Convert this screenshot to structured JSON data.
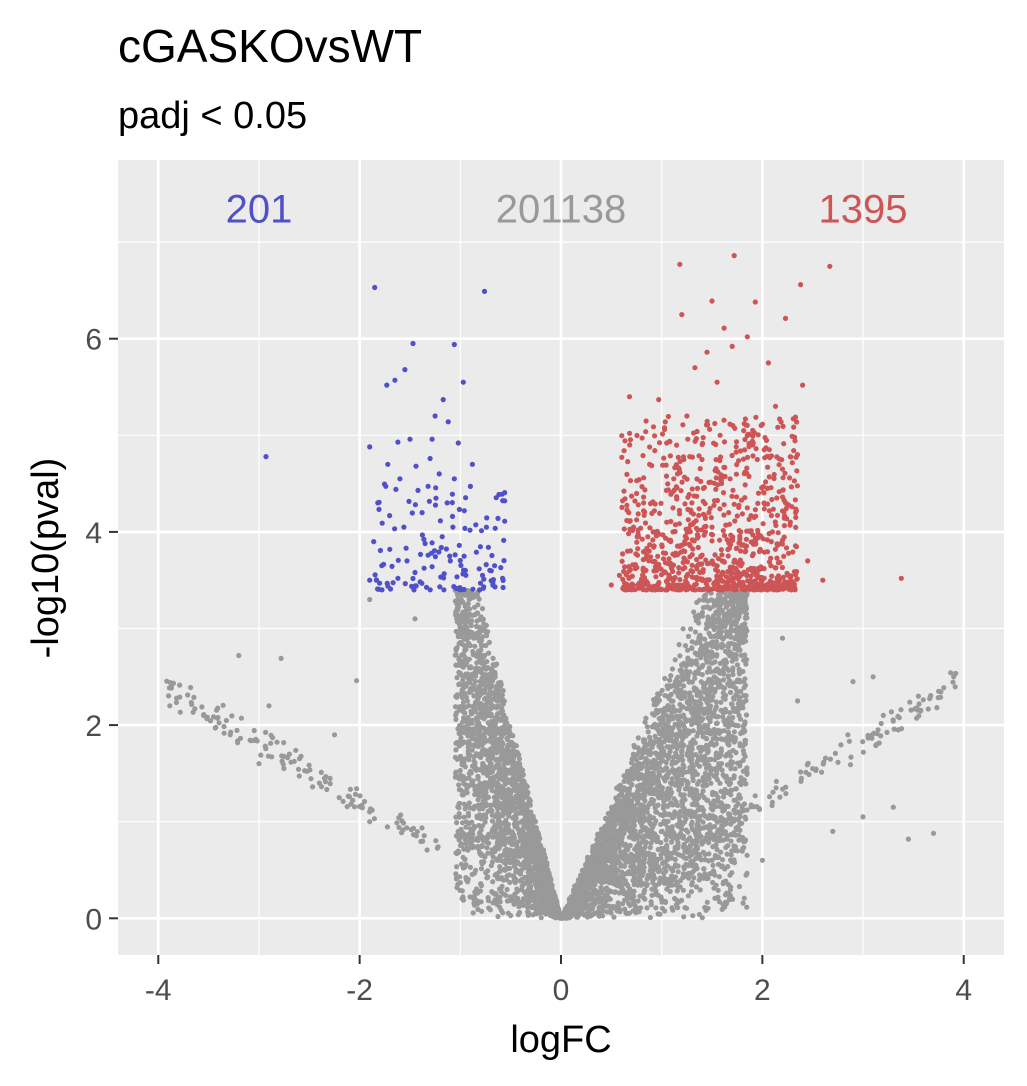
{
  "chart_data": {
    "type": "scatter",
    "title": "cGASKOvsWT",
    "subtitle": "padj < 0.05",
    "xlabel": "logFC",
    "ylabel": "-log10(pval)",
    "xlim": [
      -4.4,
      4.4
    ],
    "ylim": [
      -0.38,
      7.85
    ],
    "x_ticks": [
      -4,
      -2,
      0,
      2,
      4
    ],
    "x_tick_labels": [
      "-4",
      "-2",
      "0",
      "2",
      "4"
    ],
    "y_ticks": [
      0,
      2,
      4,
      6
    ],
    "y_tick_labels": [
      "0",
      "2",
      "4",
      "6"
    ],
    "grid": true,
    "background": "#ebebeb",
    "colors": {
      "down": "#5050c8",
      "ns": "#999999",
      "up": "#cd5555"
    },
    "significance_threshold": 3.4,
    "counts": [
      {
        "label": "201",
        "x": -3.0,
        "y": 7.35,
        "group": "down"
      },
      {
        "label": "201138",
        "x": 0.0,
        "y": 7.35,
        "group": "ns"
      },
      {
        "label": "1395",
        "x": 3.0,
        "y": 7.35,
        "group": "up"
      }
    ],
    "series": [
      {
        "group": "down",
        "points": [
          [
            -2.93,
            4.78
          ],
          [
            -1.85,
            6.53
          ],
          [
            -0.76,
            6.49
          ],
          [
            -1.47,
            5.95
          ],
          [
            -1.06,
            5.94
          ],
          [
            -0.97,
            5.55
          ],
          [
            -1.55,
            5.68
          ],
          [
            -1.65,
            5.57
          ],
          [
            -1.73,
            5.52
          ],
          [
            -1.17,
            5.37
          ],
          [
            -1.25,
            5.2
          ],
          [
            -1.12,
            5.14
          ],
          [
            -1.9,
            4.88
          ],
          [
            -1.62,
            4.93
          ],
          [
            -1.5,
            4.96
          ],
          [
            -1.28,
            4.96
          ],
          [
            -1.02,
            4.92
          ],
          [
            -1.72,
            4.7
          ],
          [
            -1.44,
            4.68
          ],
          [
            -1.3,
            4.76
          ],
          [
            -0.88,
            4.7
          ],
          [
            -1.6,
            4.55
          ],
          [
            -1.42,
            4.43
          ],
          [
            -1.06,
            4.55
          ],
          [
            -1.21,
            4.6
          ],
          [
            -1.82,
            4.3
          ],
          [
            -1.56,
            4.05
          ],
          [
            -1.38,
            4.2
          ],
          [
            -1.13,
            4.3
          ],
          [
            -0.96,
            4.22
          ],
          [
            -1.86,
            3.9
          ],
          [
            -1.7,
            3.82
          ],
          [
            -1.53,
            3.7
          ],
          [
            -1.35,
            3.88
          ],
          [
            -1.18,
            3.95
          ],
          [
            -1.01,
            3.86
          ],
          [
            -0.84,
            3.79
          ],
          [
            -0.66,
            3.65
          ],
          [
            -0.58,
            3.52
          ],
          [
            -1.9,
            3.5
          ],
          [
            -1.78,
            3.65
          ],
          [
            -1.62,
            3.52
          ],
          [
            -1.45,
            3.58
          ],
          [
            -1.28,
            3.64
          ],
          [
            -1.1,
            3.7
          ],
          [
            -0.95,
            3.6
          ],
          [
            -0.78,
            3.55
          ]
        ]
      },
      {
        "group": "up",
        "points": [
          [
            1.18,
            6.77
          ],
          [
            1.72,
            6.86
          ],
          [
            2.67,
            6.75
          ],
          [
            2.38,
            6.56
          ],
          [
            1.5,
            6.39
          ],
          [
            1.93,
            6.38
          ],
          [
            1.2,
            6.25
          ],
          [
            2.23,
            6.21
          ],
          [
            1.62,
            6.11
          ],
          [
            1.85,
            6.02
          ],
          [
            1.45,
            5.86
          ],
          [
            1.7,
            5.92
          ],
          [
            1.33,
            5.7
          ],
          [
            2.06,
            5.75
          ],
          [
            1.55,
            5.55
          ],
          [
            2.4,
            5.52
          ],
          [
            0.68,
            5.4
          ],
          [
            0.97,
            5.37
          ],
          [
            2.13,
            5.3
          ],
          [
            1.25,
            5.2
          ],
          [
            1.82,
            5.12
          ],
          [
            1.05,
            4.92
          ],
          [
            1.58,
            5.0
          ],
          [
            2.32,
            4.98
          ],
          [
            0.88,
            4.7
          ],
          [
            1.4,
            4.75
          ],
          [
            1.95,
            4.75
          ],
          [
            2.2,
            4.65
          ],
          [
            1.12,
            4.55
          ],
          [
            1.68,
            4.55
          ],
          [
            2.05,
            4.45
          ],
          [
            0.82,
            4.3
          ],
          [
            1.3,
            4.3
          ],
          [
            1.85,
            4.25
          ],
          [
            2.33,
            4.2
          ],
          [
            0.72,
            4.05
          ],
          [
            1.05,
            4.1
          ],
          [
            1.5,
            4.05
          ],
          [
            2.1,
            4.0
          ],
          [
            0.66,
            3.8
          ],
          [
            1.18,
            3.85
          ],
          [
            1.68,
            3.9
          ],
          [
            2.45,
            3.7
          ],
          [
            0.58,
            3.55
          ],
          [
            0.95,
            3.6
          ],
          [
            1.35,
            3.62
          ],
          [
            1.9,
            3.6
          ],
          [
            2.6,
            3.5
          ],
          [
            3.38,
            3.52
          ],
          [
            0.5,
            3.45
          ],
          [
            1.6,
            3.7
          ],
          [
            2.25,
            3.48
          ]
        ]
      }
    ],
    "ns_cloud": {
      "left_core_logfc": [
        -1.0,
        -0.3
      ],
      "right_core_logfc": [
        0.3,
        1.8
      ],
      "max_y": 3.4,
      "outliers": [
        [
          -3.88,
          2.44
        ],
        [
          -3.2,
          2.72
        ],
        [
          -2.78,
          2.69
        ],
        [
          -2.03,
          2.46
        ],
        [
          -1.9,
          3.3
        ],
        [
          -1.45,
          3.1
        ],
        [
          -2.9,
          2.2
        ],
        [
          -2.25,
          1.9
        ],
        [
          -3.55,
          2.1
        ],
        [
          -3.0,
          1.6
        ],
        [
          -2.4,
          1.4
        ],
        [
          -1.9,
          1.0
        ],
        [
          2.9,
          2.45
        ],
        [
          3.1,
          2.5
        ],
        [
          2.35,
          2.25
        ],
        [
          3.9,
          2.5
        ],
        [
          3.75,
          2.35
        ],
        [
          3.55,
          2.3
        ],
        [
          3.35,
          1.95
        ],
        [
          3.3,
          1.15
        ],
        [
          3.0,
          1.05
        ],
        [
          3.45,
          0.82
        ],
        [
          2.7,
          0.9
        ],
        [
          2.5,
          1.55
        ],
        [
          3.7,
          0.88
        ],
        [
          1.75,
          3.3
        ],
        [
          2.2,
          2.9
        ],
        [
          2.1,
          1.2
        ],
        [
          2.85,
          1.9
        ],
        [
          2.0,
          0.6
        ]
      ]
    }
  }
}
